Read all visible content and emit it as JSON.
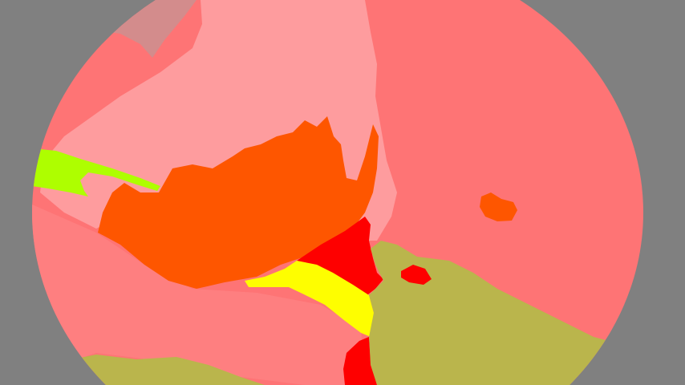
{
  "view": {
    "type": "segmentation-mask",
    "background_color": "#808080",
    "vignette": "circular"
  },
  "palette": {
    "salmon": "#fe7475",
    "light_pink": "#fe9c9e",
    "dusty_rose": "#d38c8c",
    "orange": "#fe5600",
    "red": "#fe0000",
    "yellow": "#fefe00",
    "lime": "#aefe00",
    "olive": "#bab54c",
    "soft_red": "#fe7f80"
  },
  "regions": [
    {
      "name": "salmon-background-region",
      "color_key": "salmon"
    },
    {
      "name": "lower-left-salmon-region",
      "color_key": "soft_red"
    },
    {
      "name": "light-pink-region",
      "color_key": "light_pink"
    },
    {
      "name": "dusty-rose-region",
      "color_key": "dusty_rose"
    },
    {
      "name": "orange-region",
      "color_key": "orange"
    },
    {
      "name": "small-orange-region",
      "color_key": "orange"
    },
    {
      "name": "red-region",
      "color_key": "red"
    },
    {
      "name": "lower-red-region",
      "color_key": "red"
    },
    {
      "name": "yellow-region",
      "color_key": "yellow"
    },
    {
      "name": "lime-region",
      "color_key": "lime"
    },
    {
      "name": "olive-region",
      "color_key": "olive"
    },
    {
      "name": "bottom-left-olive-region",
      "color_key": "olive"
    },
    {
      "name": "red-blob-region",
      "color_key": "red"
    }
  ]
}
